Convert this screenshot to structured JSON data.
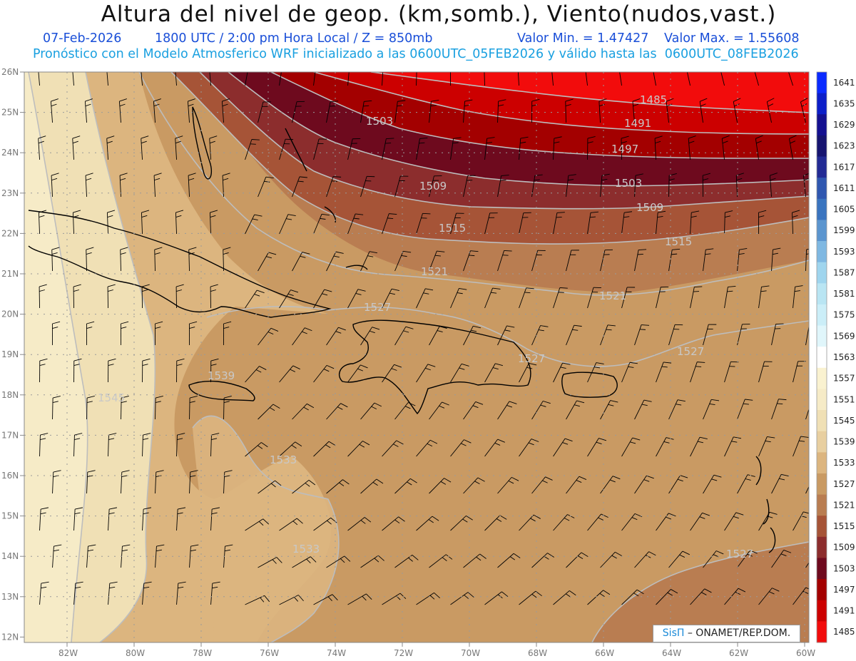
{
  "header": {
    "title": "Altura del nivel de geop. (km,somb.), Viento(nudos,vast.)",
    "date": "07-Feb-2026",
    "time": "1800 UTC / 2:00 pm Hora Local / Z = 850mb",
    "min_label": "Valor Min. = 1.47427",
    "max_label": "Valor Max. = 1.55608",
    "model_line": "Pronóstico con el Modelo Atmosferico WRF inicializado a las 0600UTC_05FEB2026 y válido hasta las  0600UTC_08FEB2026"
  },
  "axes": {
    "lat_labels": [
      "26N",
      "25N",
      "24N",
      "23N",
      "22N",
      "21N",
      "20N",
      "19N",
      "18N",
      "17N",
      "16N",
      "15N",
      "14N",
      "13N",
      "12N"
    ],
    "lon_labels": [
      "82W",
      "80W",
      "78W",
      "76W",
      "74W",
      "72W",
      "70W",
      "68W",
      "66W",
      "64W",
      "62W",
      "60W"
    ]
  },
  "contour_labels": [
    "1485",
    "1491",
    "1497",
    "1503",
    "1509",
    "1515",
    "1521",
    "1527",
    "1533",
    "1539",
    "1545",
    "1503",
    "1509",
    "1515",
    "1521",
    "1527",
    "1527",
    "1533",
    "1527"
  ],
  "colorbar": {
    "levels": [
      "1641",
      "1635",
      "1629",
      "1623",
      "1617",
      "1611",
      "1605",
      "1599",
      "1593",
      "1587",
      "1581",
      "1575",
      "1569",
      "1563",
      "1557",
      "1551",
      "1545",
      "1539",
      "1533",
      "1527",
      "1521",
      "1515",
      "1509",
      "1503",
      "1497",
      "1491",
      "1485"
    ],
    "colors": [
      "#0a2aff",
      "#0c1ec8",
      "#141090",
      "#161470",
      "#222a94",
      "#2f57b0",
      "#3a74bf",
      "#5b95cf",
      "#7fb8e2",
      "#9fd5ee",
      "#b9e5f3",
      "#cbeef8",
      "#e0f6fb",
      "#ffffff",
      "#faf2d0",
      "#f6ebc7",
      "#f0e0b5",
      "#e8cfa0",
      "#dcb57f",
      "#c99a63",
      "#b97d51",
      "#a65437",
      "#8c2d2d",
      "#6e0a1e",
      "#a30000",
      "#cc0000",
      "#f20c0c"
    ]
  },
  "credit": {
    "brand": "SisΠ",
    "org": " – ONAMET/REP.DOM."
  }
}
